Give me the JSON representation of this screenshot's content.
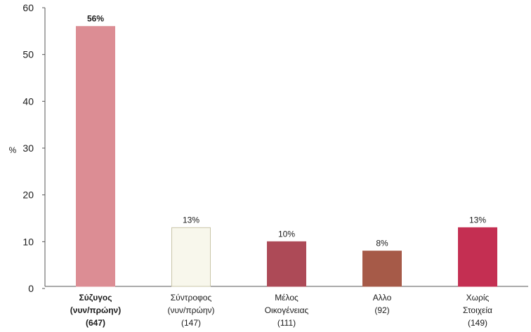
{
  "chart_data": {
    "type": "bar",
    "title": "",
    "xlabel": "",
    "ylabel": "%",
    "ylim": [
      0,
      60
    ],
    "yticks": [
      0,
      10,
      20,
      30,
      40,
      50,
      60
    ],
    "grid": false,
    "categories": [
      {
        "lines": [
          "Σύζυγος",
          "(νυν/πρώην)",
          "(647)"
        ],
        "bold": true
      },
      {
        "lines": [
          "Σύντροφος",
          "(νυν/πρώην)",
          "(147)"
        ],
        "bold": false
      },
      {
        "lines": [
          "Μέλος",
          "Οικογένειας",
          "(111)"
        ],
        "bold": false
      },
      {
        "lines": [
          "Αλλο",
          "(92)"
        ],
        "bold": false
      },
      {
        "lines": [
          "Χωρίς",
          "Στοιχεία",
          "(149)"
        ],
        "bold": false
      }
    ],
    "values": [
      56,
      13,
      10,
      8,
      13
    ],
    "data_labels": [
      "56%",
      "13%",
      "10%",
      "8%",
      "13%"
    ],
    "bar_colors": [
      "#dc8d94",
      "#f8f7ec",
      "#ad4a57",
      "#a65a48",
      "#c42f52"
    ],
    "bar_edge_colors": [
      "#dc8d94",
      "#c9c5a8",
      "#ad4a57",
      "#a65a48",
      "#c42f52"
    ]
  }
}
